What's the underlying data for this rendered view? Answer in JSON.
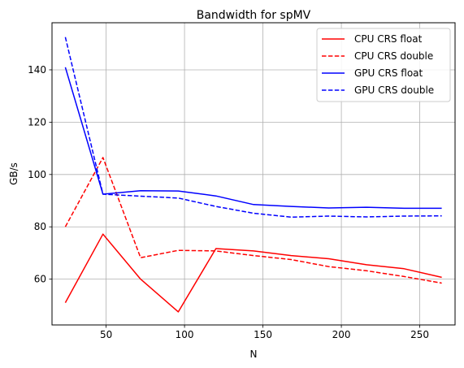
{
  "chart_data": {
    "type": "line",
    "title": "Bandwidth for spMV",
    "xlabel": "N",
    "ylabel": "GB/s",
    "xlim": [
      15.5,
      272.5
    ],
    "ylim": [
      42.5,
      158
    ],
    "xticks": [
      50,
      100,
      150,
      200,
      250
    ],
    "yticks": [
      60,
      80,
      100,
      120,
      140
    ],
    "grid": true,
    "legend_position": "top-right",
    "x": [
      24,
      48,
      72,
      96,
      120,
      144,
      168,
      192,
      216,
      240,
      264
    ],
    "series": [
      {
        "name": "CPU CRS float",
        "color": "#ff0000",
        "linestyle": "solid",
        "values": [
          51,
          77.2,
          60,
          47.5,
          71.7,
          70.8,
          69,
          67.8,
          65.5,
          64,
          60.7
        ]
      },
      {
        "name": "CPU CRS double",
        "color": "#ff0000",
        "linestyle": "dashed",
        "values": [
          80,
          106.5,
          68.2,
          71,
          70.8,
          69,
          67.5,
          64.8,
          63.2,
          61,
          58.5
        ]
      },
      {
        "name": "GPU CRS float",
        "color": "#0000ff",
        "linestyle": "solid",
        "values": [
          141,
          92.5,
          93.8,
          93.7,
          91.8,
          88.5,
          87.8,
          87.2,
          87.5,
          87.1,
          87.1
        ]
      },
      {
        "name": "GPU CRS double",
        "color": "#0000ff",
        "linestyle": "dashed",
        "values": [
          152.5,
          92.5,
          91.7,
          91,
          87.8,
          85.2,
          83.7,
          84.1,
          83.8,
          84.1,
          84.2
        ]
      }
    ]
  }
}
